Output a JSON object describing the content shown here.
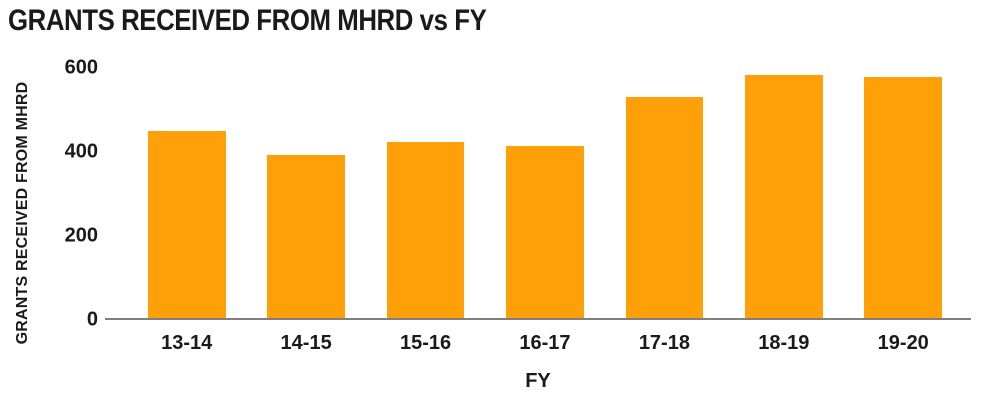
{
  "title": "GRANTS RECEIVED FROM MHRD vs FY",
  "colors": {
    "bar": "#FFA008",
    "axis_line": "#7F7F7F",
    "text": "#1A1A1A",
    "background": "#FFFFFF"
  },
  "chart_data": {
    "type": "bar",
    "title": "GRANTS RECEIVED FROM MHRD vs FY",
    "categories": [
      "13-14",
      "14-15",
      "15-16",
      "16-17",
      "17-18",
      "18-19",
      "19-20"
    ],
    "values": [
      450,
      392,
      422,
      412,
      530,
      584,
      579
    ],
    "xlabel": "FY",
    "ylabel": "GRANTS RECEIVED FROM MHRD",
    "ylim": [
      0,
      600
    ],
    "yticks": [
      0,
      200,
      400,
      600
    ],
    "grid": false,
    "legend": false,
    "bar_color": "#FFA008",
    "orientation": "vertical"
  }
}
